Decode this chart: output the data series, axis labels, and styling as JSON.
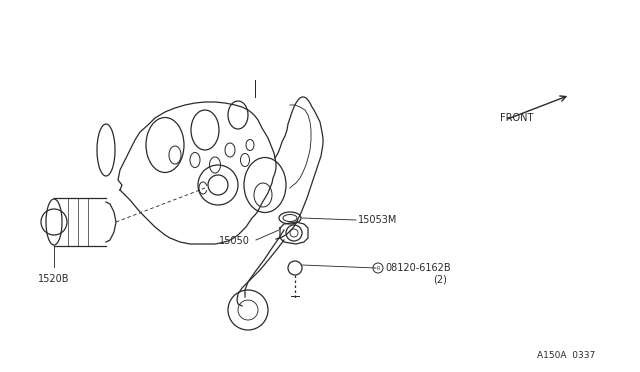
{
  "bg_color": "#ffffff",
  "line_color": "#2a2a2a",
  "labels": {
    "part1": "1520B",
    "part2": "15050",
    "part3": "15053M",
    "part4_line1": "08120-6162B",
    "part4_line2": "(2)",
    "front": "FRONT",
    "diagram_id": "A150A  0337"
  },
  "font_size": 7.0,
  "small_font_size": 6.5
}
